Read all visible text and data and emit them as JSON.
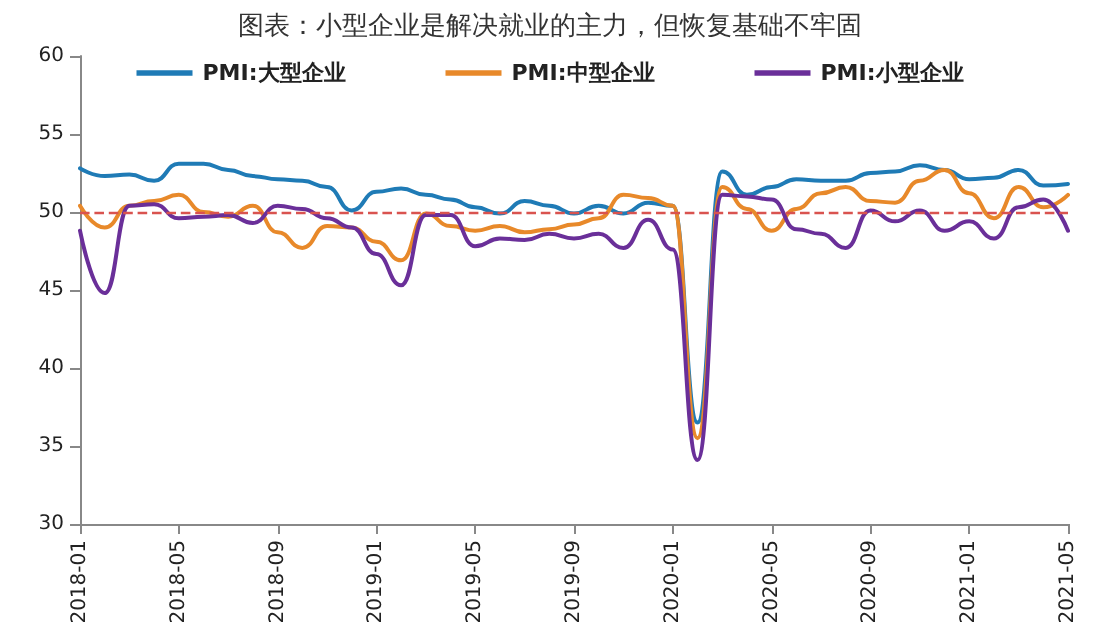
{
  "chart_data": {
    "type": "line",
    "title": "图表：小型企业是解决就业的主力，但恢复基础不牢固",
    "categories": [
      "2018-01",
      null,
      null,
      null,
      "2018-05",
      null,
      null,
      null,
      "2018-09",
      null,
      null,
      null,
      "2019-01",
      null,
      null,
      null,
      "2019-05",
      null,
      null,
      null,
      "2019-09",
      null,
      null,
      null,
      "2020-01",
      null,
      null,
      null,
      "2020-05",
      null,
      null,
      null,
      "2020-09",
      null,
      null,
      null,
      "2021-01",
      null,
      null,
      null,
      "2021-05"
    ],
    "series": [
      {
        "name": "PMI:大型企业",
        "color": "#1f7bb6",
        "values": [
          52.8,
          52.3,
          52.4,
          52.0,
          53.1,
          53.1,
          52.7,
          52.3,
          52.1,
          52.0,
          51.6,
          50.1,
          51.3,
          51.5,
          51.1,
          50.8,
          50.3,
          49.9,
          50.7,
          50.4,
          49.9,
          50.4,
          49.9,
          50.6,
          50.4,
          36.5,
          52.6,
          51.1,
          51.6,
          52.1,
          52.0,
          52.0,
          52.5,
          52.6,
          53.0,
          52.7,
          52.1,
          52.2,
          52.7,
          51.7,
          51.8
        ]
      },
      {
        "name": "PMI:中型企业",
        "color": "#e8892a",
        "values": [
          50.4,
          49.0,
          50.4,
          50.7,
          51.1,
          50.0,
          49.7,
          50.4,
          48.7,
          47.7,
          49.1,
          49.0,
          48.1,
          46.9,
          49.9,
          49.1,
          48.8,
          49.1,
          48.7,
          48.9,
          49.2,
          49.6,
          51.1,
          50.9,
          50.4,
          35.5,
          51.6,
          50.2,
          48.8,
          50.2,
          51.2,
          51.6,
          50.7,
          50.6,
          52.0,
          52.7,
          51.2,
          49.6,
          51.6,
          50.3,
          51.1
        ]
      },
      {
        "name": "PMI:小型企业",
        "color": "#6a2f99",
        "values": [
          48.8,
          44.8,
          50.4,
          50.5,
          49.6,
          49.7,
          49.8,
          49.3,
          50.4,
          50.2,
          49.6,
          49.0,
          47.3,
          45.3,
          49.8,
          49.8,
          47.8,
          48.3,
          48.2,
          48.6,
          48.3,
          48.6,
          47.7,
          49.5,
          47.6,
          34.1,
          51.1,
          51.0,
          50.8,
          48.9,
          48.6,
          47.7,
          50.1,
          49.4,
          50.1,
          48.8,
          49.4,
          48.3,
          50.3,
          50.8,
          48.8
        ]
      }
    ],
    "ylim": [
      30,
      60
    ],
    "yticks": [
      30,
      35,
      40,
      45,
      50,
      55,
      60
    ],
    "grid": false,
    "legend": "top",
    "marker": "none",
    "line_style": "solid",
    "ref_lines": [
      {
        "axis": "y",
        "value": 50,
        "color": "#d9534f",
        "line_style": "dashed"
      }
    ]
  }
}
